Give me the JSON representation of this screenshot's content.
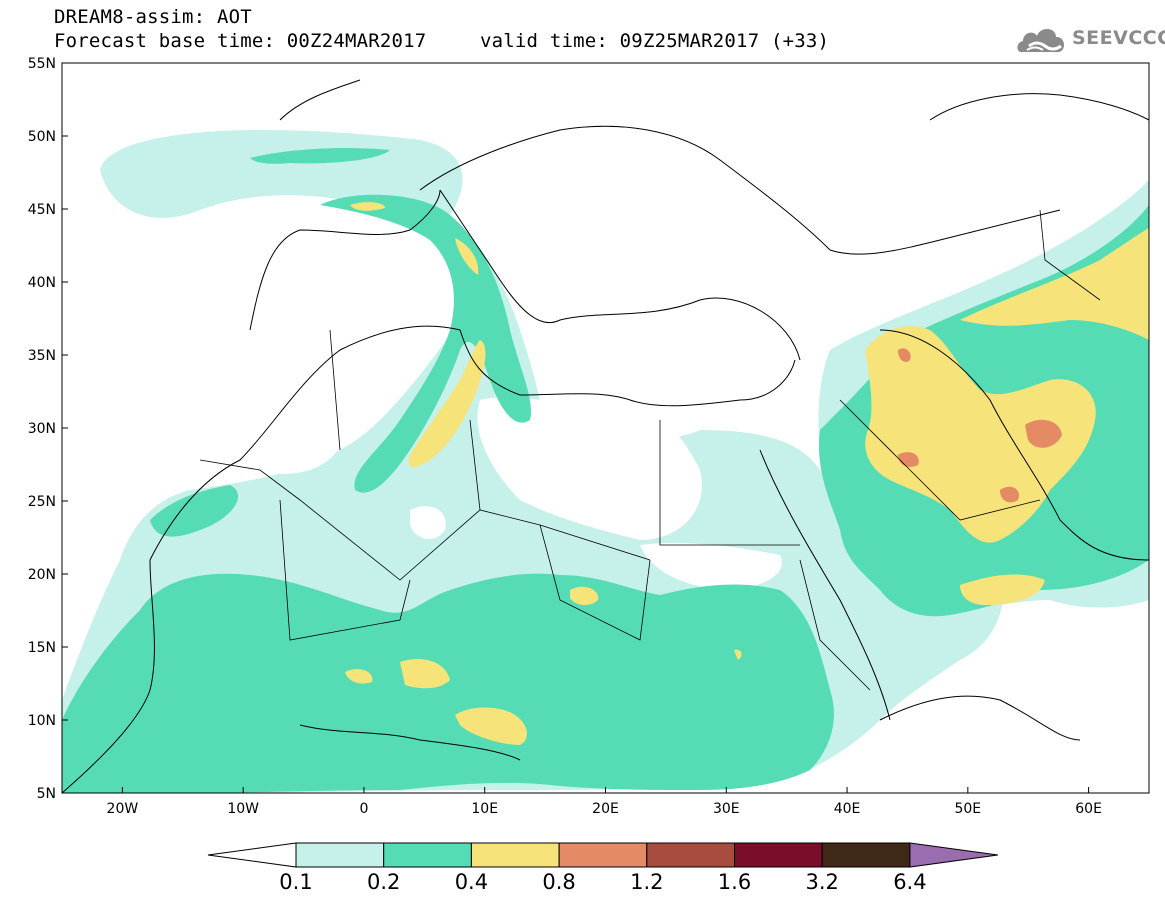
{
  "header": {
    "title": "DREAM8-assim: AOT",
    "base_time_label": "Forecast base time: 00Z24MAR2017",
    "valid_time_label": "valid time: 09Z25MAR2017 (+33)"
  },
  "logo": {
    "text": "SEEVCCC",
    "icon": "cloud-logo-icon",
    "color": "#8a8a8a"
  },
  "map": {
    "lat_range": [
      5,
      55
    ],
    "lon_range": [
      -25,
      65
    ],
    "lat_ticks": [
      "55N",
      "50N",
      "45N",
      "40N",
      "35N",
      "30N",
      "25N",
      "20N",
      "15N",
      "10N",
      "5N"
    ],
    "lon_ticks": [
      "20W",
      "10W",
      "0",
      "10E",
      "20E",
      "30E",
      "40E",
      "50E",
      "60E"
    ]
  },
  "colorbar": {
    "labels": [
      "0.1",
      "0.2",
      "0.4",
      "0.8",
      "1.2",
      "1.6",
      "3.2",
      "6.4"
    ],
    "colors": [
      "#ffffff",
      "#c6f0ea",
      "#56dcb4",
      "#f6e47a",
      "#e48a64",
      "#a84c40",
      "#7a0e2a",
      "#402818",
      "#9a6cb0"
    ]
  }
}
